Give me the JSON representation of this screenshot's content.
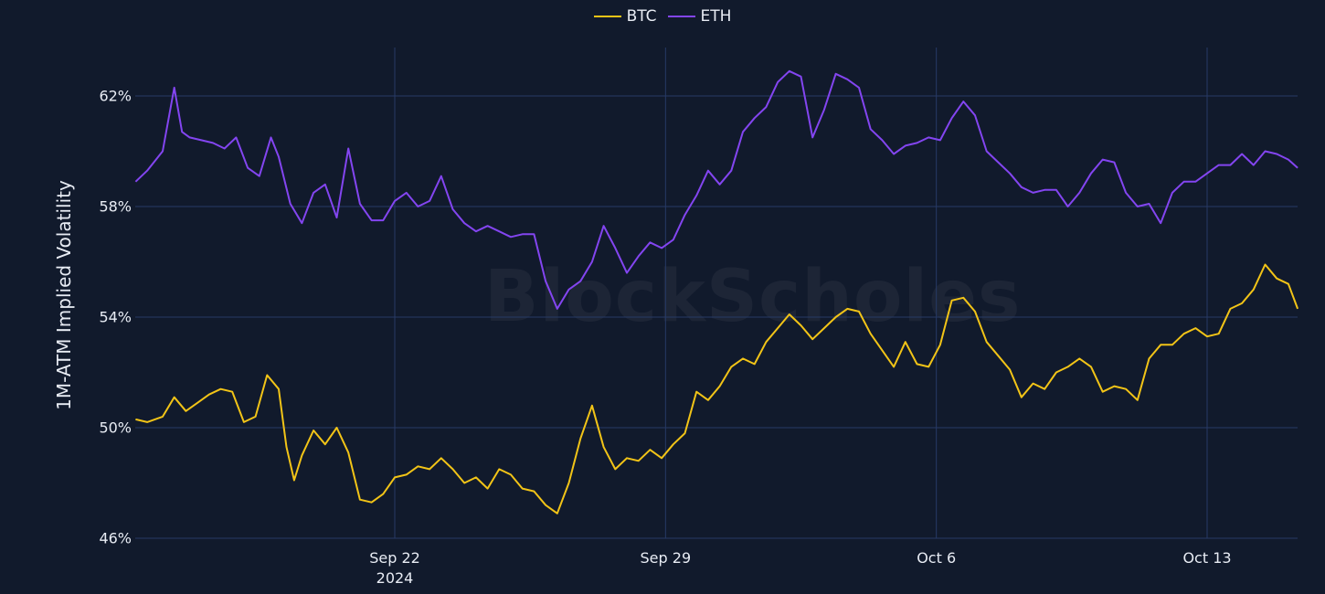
{
  "chart_data": {
    "type": "line",
    "title": "",
    "xlabel": "",
    "ylabel": "1M-ATM Implied Volatility",
    "ylim": [
      46,
      63.5
    ],
    "yticks": [
      46,
      50,
      54,
      58,
      62
    ],
    "ytick_labels": [
      "46%",
      "50%",
      "54%",
      "58%",
      "62%"
    ],
    "xticks": [
      {
        "label": "Sep 22",
        "sub": "2024",
        "day": 7
      },
      {
        "label": "Sep 29",
        "sub": "",
        "day": 14
      },
      {
        "label": "Oct 6",
        "sub": "",
        "day": 21
      },
      {
        "label": "Oct 13",
        "sub": "",
        "day": 28
      }
    ],
    "x_range_days": [
      0.3,
      30.34
    ],
    "x_origin": "Sep 15 2024",
    "grid": true,
    "legend_position": "top-center",
    "watermark": "BlockScholes",
    "series": [
      {
        "name": "BTC",
        "color": "#f2c417",
        "x": [
          0.3,
          0.6,
          1.0,
          1.3,
          1.6,
          1.9,
          2.2,
          2.5,
          2.8,
          3.1,
          3.4,
          3.7,
          4.0,
          4.2,
          4.4,
          4.6,
          4.9,
          5.2,
          5.5,
          5.8,
          6.1,
          6.4,
          6.7,
          7.0,
          7.3,
          7.6,
          7.9,
          8.2,
          8.5,
          8.8,
          9.1,
          9.4,
          9.7,
          10.0,
          10.3,
          10.6,
          10.9,
          11.2,
          11.5,
          11.8,
          12.1,
          12.4,
          12.7,
          13.0,
          13.3,
          13.6,
          13.9,
          14.2,
          14.5,
          14.8,
          15.1,
          15.4,
          15.7,
          16.0,
          16.3,
          16.6,
          16.9,
          17.2,
          17.5,
          17.8,
          18.1,
          18.4,
          18.7,
          19.0,
          19.3,
          19.6,
          19.9,
          20.2,
          20.5,
          20.8,
          21.1,
          21.4,
          21.7,
          22.0,
          22.3,
          22.6,
          22.9,
          23.2,
          23.5,
          23.8,
          24.1,
          24.4,
          24.7,
          25.0,
          25.3,
          25.6,
          25.9,
          26.2,
          26.5,
          26.8,
          27.1,
          27.4,
          27.7,
          28.0,
          28.3,
          28.6,
          28.9,
          29.2,
          29.5,
          29.8,
          30.1,
          30.34
        ],
        "values": [
          50.3,
          50.2,
          50.4,
          51.1,
          50.6,
          50.9,
          51.2,
          51.4,
          51.3,
          50.2,
          50.4,
          51.9,
          51.4,
          49.3,
          48.1,
          49.0,
          49.9,
          49.4,
          50.0,
          49.1,
          47.4,
          47.3,
          47.6,
          48.2,
          48.3,
          48.6,
          48.5,
          48.9,
          48.5,
          48.0,
          48.2,
          47.8,
          48.5,
          48.3,
          47.8,
          47.7,
          47.2,
          46.9,
          48.0,
          49.6,
          50.8,
          49.3,
          48.5,
          48.9,
          48.8,
          49.2,
          48.9,
          49.4,
          49.8,
          51.3,
          51.0,
          51.5,
          52.2,
          52.5,
          52.3,
          53.1,
          53.6,
          54.1,
          53.7,
          53.2,
          53.6,
          54.0,
          54.3,
          54.2,
          53.4,
          52.8,
          52.2,
          53.1,
          52.3,
          52.2,
          53.0,
          54.6,
          54.7,
          54.2,
          53.1,
          52.6,
          52.1,
          51.1,
          51.6,
          51.4,
          52.0,
          52.2,
          52.5,
          52.2,
          51.3,
          51.5,
          51.4,
          51.0,
          52.5,
          53.0,
          53.0,
          53.4,
          53.6,
          53.3,
          53.4,
          54.3,
          54.5,
          55.0,
          55.9,
          55.4,
          55.2,
          54.3
        ]
      },
      {
        "name": "ETH",
        "color": "#8345f0",
        "x": [
          0.3,
          0.6,
          1.0,
          1.3,
          1.5,
          1.7,
          2.0,
          2.3,
          2.6,
          2.9,
          3.2,
          3.5,
          3.8,
          4.0,
          4.3,
          4.6,
          4.9,
          5.2,
          5.5,
          5.8,
          6.1,
          6.4,
          6.7,
          7.0,
          7.3,
          7.6,
          7.9,
          8.2,
          8.5,
          8.8,
          9.1,
          9.4,
          9.7,
          10.0,
          10.3,
          10.6,
          10.9,
          11.2,
          11.5,
          11.8,
          12.1,
          12.4,
          12.7,
          13.0,
          13.3,
          13.6,
          13.9,
          14.2,
          14.5,
          14.8,
          15.1,
          15.4,
          15.7,
          16.0,
          16.3,
          16.6,
          16.9,
          17.2,
          17.5,
          17.8,
          18.1,
          18.4,
          18.7,
          19.0,
          19.3,
          19.6,
          19.9,
          20.2,
          20.5,
          20.8,
          21.1,
          21.4,
          21.7,
          22.0,
          22.3,
          22.6,
          22.9,
          23.2,
          23.5,
          23.8,
          24.1,
          24.4,
          24.7,
          25.0,
          25.3,
          25.6,
          25.9,
          26.2,
          26.5,
          26.8,
          27.1,
          27.4,
          27.7,
          28.0,
          28.3,
          28.6,
          28.9,
          29.2,
          29.5,
          29.8,
          30.1,
          30.34
        ],
        "values": [
          58.9,
          59.3,
          60.0,
          62.3,
          60.7,
          60.5,
          60.4,
          60.3,
          60.1,
          60.5,
          59.4,
          59.1,
          60.5,
          59.8,
          58.1,
          57.4,
          58.5,
          58.8,
          57.6,
          60.1,
          58.1,
          57.5,
          57.5,
          58.2,
          58.5,
          58.0,
          58.2,
          59.1,
          57.9,
          57.4,
          57.1,
          57.3,
          57.1,
          56.9,
          57.0,
          57.0,
          55.3,
          54.3,
          55.0,
          55.3,
          56.0,
          57.3,
          56.5,
          55.6,
          56.2,
          56.7,
          56.5,
          56.8,
          57.7,
          58.4,
          59.3,
          58.8,
          59.3,
          60.7,
          61.2,
          61.6,
          62.5,
          62.9,
          62.7,
          60.5,
          61.5,
          62.8,
          62.6,
          62.3,
          60.8,
          60.4,
          59.9,
          60.2,
          60.3,
          60.5,
          60.4,
          61.2,
          61.8,
          61.3,
          60.0,
          59.6,
          59.2,
          58.7,
          58.5,
          58.6,
          58.6,
          58.0,
          58.5,
          59.2,
          59.7,
          59.6,
          58.5,
          58.0,
          58.1,
          57.4,
          58.5,
          58.9,
          58.9,
          59.2,
          59.5,
          59.5,
          59.9,
          59.5,
          60.0,
          59.9,
          59.7,
          59.4
        ]
      }
    ]
  },
  "legend": {
    "items": [
      {
        "label": "BTC",
        "color": "#f2c417"
      },
      {
        "label": "ETH",
        "color": "#8345f0"
      }
    ]
  },
  "theme": {
    "background": "#111a2c",
    "grid_color": "#273a66",
    "text_color": "#e8ecf4"
  }
}
